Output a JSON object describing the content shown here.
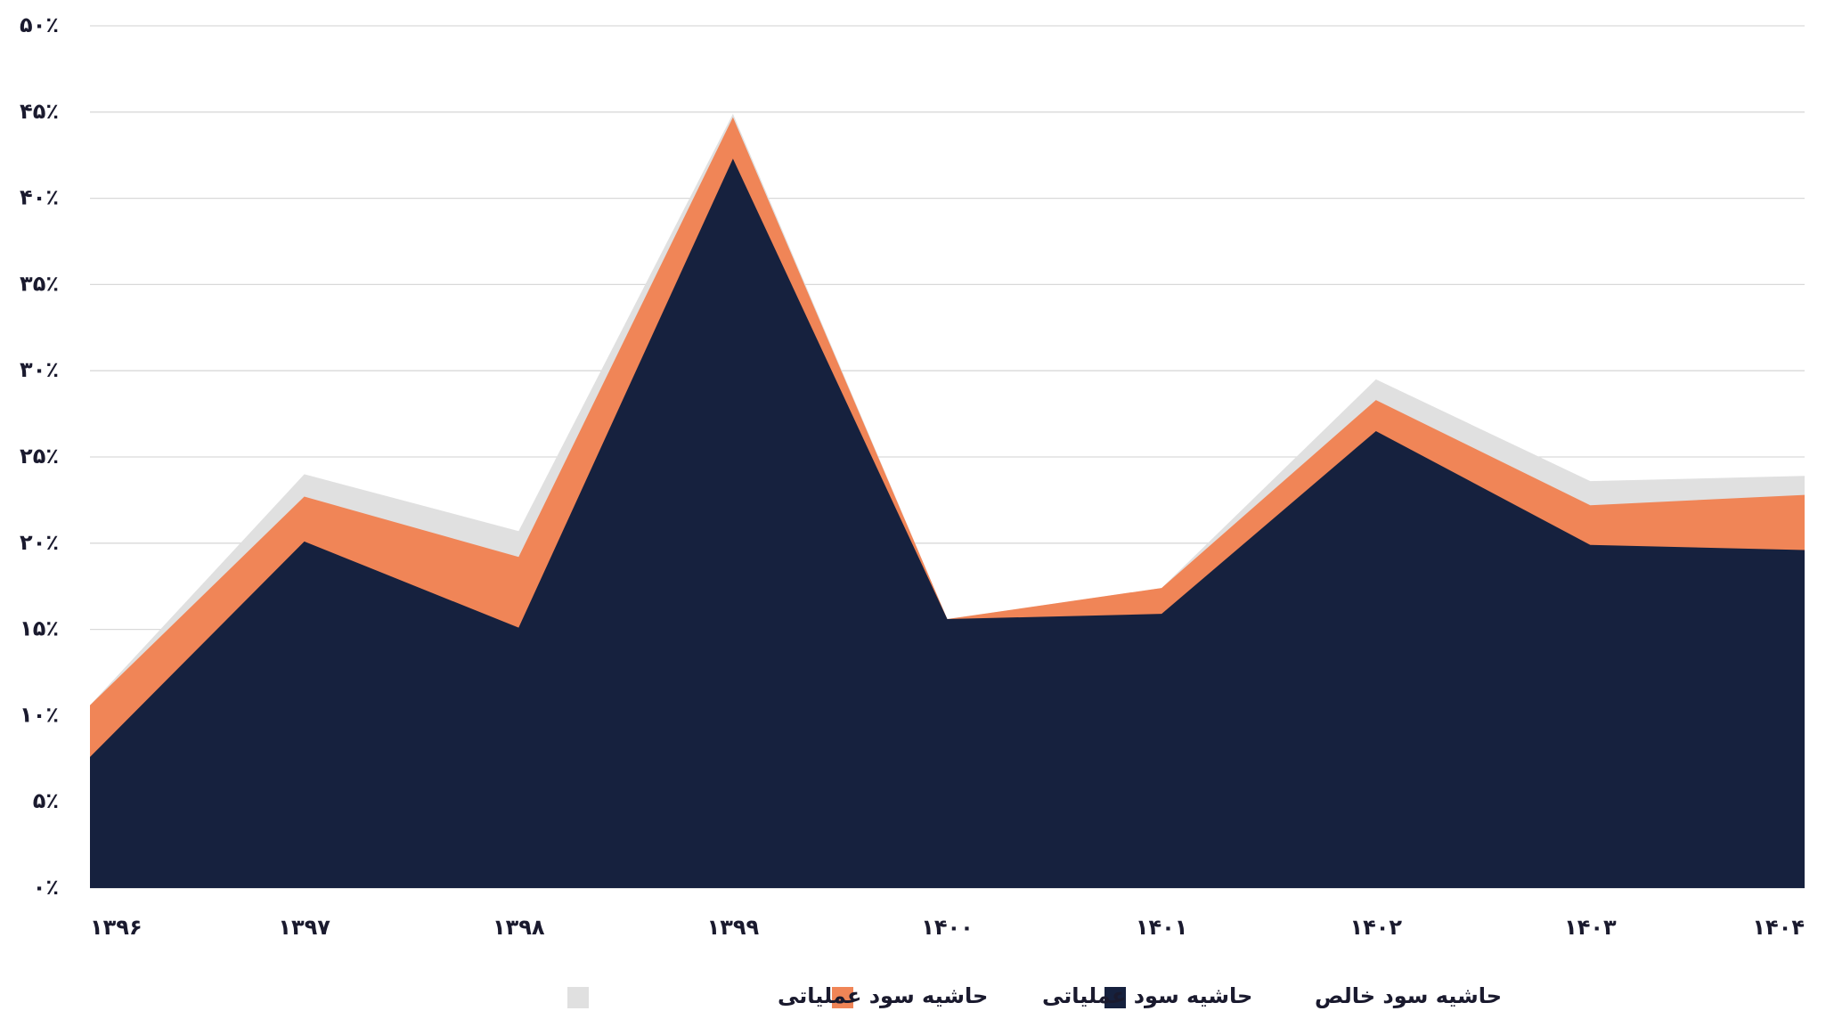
{
  "chart_data": {
    "type": "area",
    "categories": [
      "۱۳۹۶",
      "۱۳۹۷",
      "۱۳۹۸",
      "۱۳۹۹",
      "۱۴۰۰",
      "۱۴۰۱",
      "۱۴۰۲",
      "۱۴۰۳",
      "۱۴۰۴"
    ],
    "series": [
      {
        "name": "حاشیه سود عملیاتی",
        "color": "#e0e0e0",
        "values": [
          10.6,
          24.0,
          20.7,
          44.9,
          15.6,
          17.4,
          29.5,
          23.6,
          23.9
        ]
      },
      {
        "name": "حاشیه سود عملیاتی",
        "color": "#f08557",
        "values": [
          10.6,
          22.7,
          19.2,
          44.7,
          15.6,
          17.4,
          28.3,
          22.2,
          22.8
        ]
      },
      {
        "name": "حاشیه سود خالص",
        "color": "#16213e",
        "values": [
          7.6,
          20.1,
          15.1,
          42.3,
          15.6,
          15.9,
          26.5,
          19.9,
          19.6
        ]
      }
    ],
    "ylim": [
      0,
      50
    ],
    "yticks": [
      {
        "value": 0,
        "label": "۰٪"
      },
      {
        "value": 5,
        "label": "۵٪"
      },
      {
        "value": 10,
        "label": "۱۰٪"
      },
      {
        "value": 15,
        "label": "۱۵٪"
      },
      {
        "value": 20,
        "label": "۲۰٪"
      },
      {
        "value": 25,
        "label": "۲۵٪"
      },
      {
        "value": 30,
        "label": "۳۰٪"
      },
      {
        "value": 35,
        "label": "۳۵٪"
      },
      {
        "value": 40,
        "label": "۴۰٪"
      },
      {
        "value": 45,
        "label": "۴۵٪"
      },
      {
        "value": 50,
        "label": "۵۰٪"
      }
    ],
    "grid": true,
    "legend": "bottom"
  }
}
